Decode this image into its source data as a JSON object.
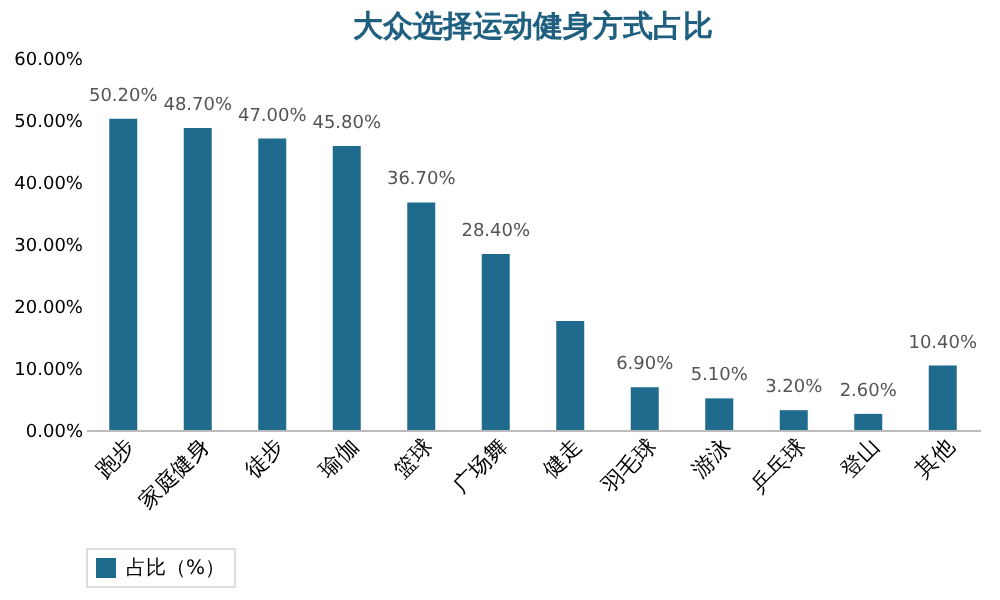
{
  "chart_data": {
    "type": "bar",
    "title": "大众选择运动健身方式占比",
    "categories": [
      "跑步",
      "家庭健身",
      "徒步",
      "瑜伽",
      "篮球",
      "广场舞",
      "健走",
      "羽毛球",
      "游泳",
      "乒乓球",
      "登山",
      "其他"
    ],
    "series": [
      {
        "name": "占比（%）",
        "color": "#1f6b8e",
        "values": [
          50.2,
          48.7,
          47.0,
          45.8,
          36.7,
          28.4,
          17.6,
          6.9,
          5.1,
          3.2,
          2.6,
          10.4
        ],
        "value_labels": [
          "50.20%",
          "48.70%",
          "47.00%",
          "45.80%",
          "36.70%",
          "28.40%",
          null,
          "6.90%",
          "5.10%",
          "3.20%",
          "2.60%",
          "10.40%"
        ]
      }
    ],
    "ylim": [
      0,
      60
    ],
    "yticks": [
      {
        "value": 0,
        "label": "0.00%"
      },
      {
        "value": 10,
        "label": "10.00%"
      },
      {
        "value": 20,
        "label": "20.00%"
      },
      {
        "value": 30,
        "label": "30.00%"
      },
      {
        "value": 40,
        "label": "40.00%"
      },
      {
        "value": 50,
        "label": "50.00%"
      },
      {
        "value": 60,
        "label": "60.00%"
      }
    ],
    "grid": false,
    "legend": "bottom"
  }
}
